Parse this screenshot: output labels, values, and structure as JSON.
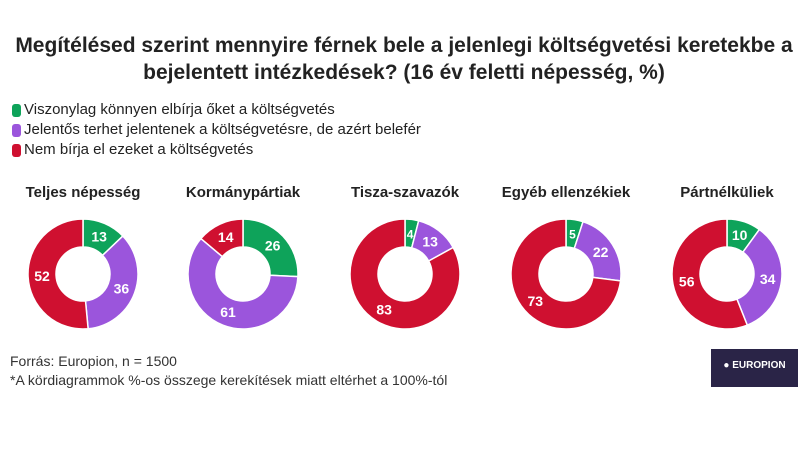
{
  "chart_data": {
    "type": "donut",
    "title": "Megítélésed szerint mennyire férnek bele a jelenlegi költségvetési keretekbe a bejelentett intézkedések? (16 év feletti népesség, %)",
    "legend": [
      "Viszonylag könnyen elbírja őket a költségvetés",
      "Jelentős terhet jelentenek a költségvetésre, de azért belefér",
      "Nem bírja el ezeket a költségvetés"
    ],
    "colors": [
      "#0ea35a",
      "#9b55dc",
      "#cf1030"
    ],
    "legend_position": "top-left",
    "charts": [
      {
        "title": "Teljes népesség",
        "values": [
          13,
          36,
          52
        ]
      },
      {
        "title": "Kormánypártiak",
        "values": [
          26,
          61,
          14
        ]
      },
      {
        "title": "Tisza-szavazók",
        "values": [
          4,
          13,
          83
        ]
      },
      {
        "title": "Egyéb ellenzékiek",
        "values": [
          5,
          22,
          73
        ]
      },
      {
        "title": "Pártnélküliek",
        "values": [
          10,
          34,
          56
        ]
      }
    ]
  },
  "footer": {
    "source": "Forrás: Europion, n = 1500",
    "note": "*A kördiagrammok %-os összege kerekítések miatt eltérhet a 100%-tól"
  },
  "logo": {
    "text": "EUROPION"
  }
}
